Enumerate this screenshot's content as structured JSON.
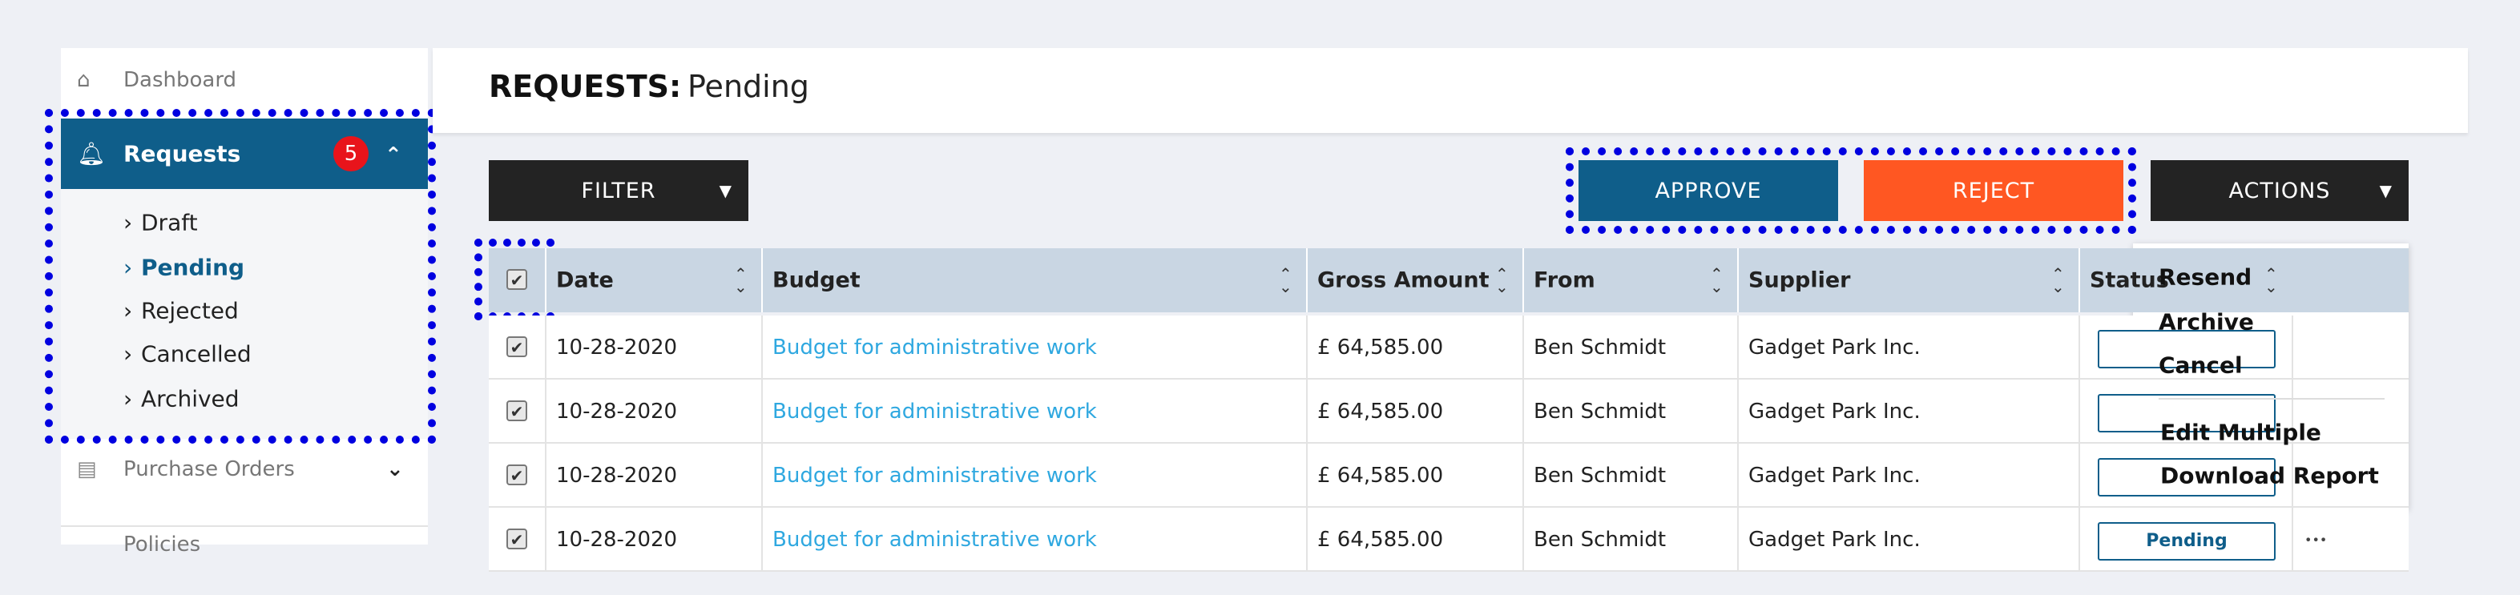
{
  "sidebar": {
    "items": [
      {
        "label": "Dashboard"
      },
      {
        "label": "Requests",
        "badge": "5",
        "children": [
          "Draft",
          "Pending",
          "Rejected",
          "Cancelled",
          "Archived"
        ]
      },
      {
        "label": "Purchase Orders"
      },
      {
        "label": "Policies"
      }
    ]
  },
  "header": {
    "title": "REQUESTS:",
    "subtitle": "Pending"
  },
  "toolbar": {
    "filter": "FILTER",
    "approve": "APPROVE",
    "reject": "REJECT",
    "actions": "ACTIONS"
  },
  "table": {
    "columns": [
      "Date",
      "Budget",
      "Gross Amount",
      "From",
      "Supplier",
      "Status"
    ],
    "rows": [
      {
        "date": "10-28-2020",
        "budget": "Budget for administrative work",
        "amount": "£ 64,585.00",
        "from": "Ben Schmidt",
        "supplier": "Gadget Park Inc."
      },
      {
        "date": "10-28-2020",
        "budget": "Budget for administrative work",
        "amount": "£ 64,585.00",
        "from": "Ben Schmidt",
        "supplier": "Gadget Park Inc."
      },
      {
        "date": "10-28-2020",
        "budget": "Budget for administrative work",
        "amount": "£ 64,585.00",
        "from": "Ben Schmidt",
        "supplier": "Gadget Park Inc."
      },
      {
        "date": "10-28-2020",
        "budget": "Budget for administrative work",
        "amount": "£ 64,585.00",
        "from": "Ben Schmidt",
        "supplier": "Gadget Park Inc.",
        "status": "Pending",
        "more": "•••"
      }
    ]
  },
  "actions_menu": {
    "items": [
      "Resend",
      "Archive",
      "Cancel"
    ],
    "items2": [
      "Edit Multiple",
      "Download Report"
    ]
  }
}
